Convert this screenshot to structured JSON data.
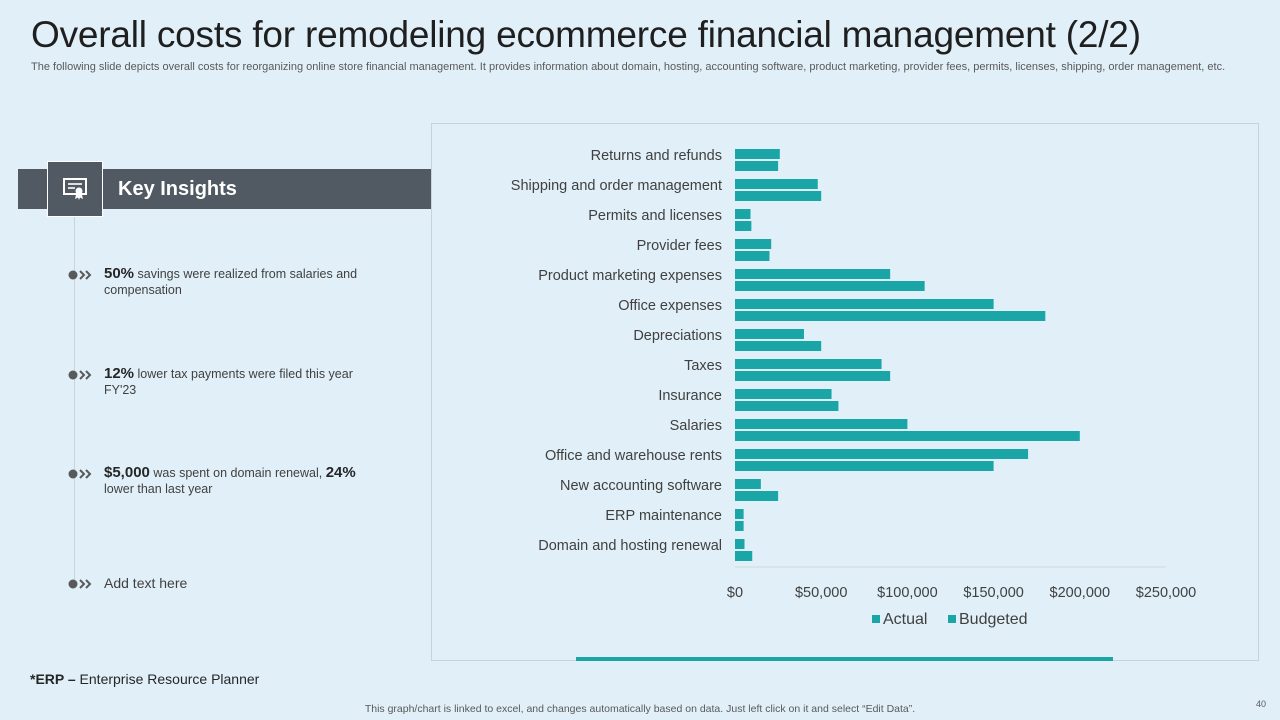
{
  "title": "Overall costs for remodeling ecommerce financial management (2/2)",
  "subtitle": "The following slide depicts overall costs for reorganizing online store financial management. It provides information about domain, hosting, accounting software, product marketing, provider fees, permits, licenses, shipping, order management, etc.",
  "key_insights": {
    "heading": "Key Insights",
    "icon": "certificate-icon",
    "items": [
      {
        "highlight": "50%",
        "text": " savings were realized from salaries and compensation"
      },
      {
        "highlight": "12%",
        "text": " lower tax payments were filed this year FY'23"
      },
      {
        "highlight": "$5,000",
        "text": " was spent on domain renewal, ",
        "highlight2": "24%",
        "text2": " lower than last year"
      },
      {
        "text": "Add text here"
      }
    ]
  },
  "footnote": {
    "bold": "*ERP –",
    "text": " Enterprise Resource Planner"
  },
  "bottom_note": "This graph/chart is linked to excel,  and changes automatically based on data. Just left click on it and select “Edit Data”.",
  "page_number": "40",
  "colors": {
    "actual": "#1aa6a6",
    "budgeted": "#1aa6a6",
    "dark_bar": "#515a63",
    "background": "#e1f0f8"
  },
  "chart_data": {
    "type": "bar",
    "orientation": "horizontal",
    "categories": [
      "Returns and refunds",
      "Shipping and order management",
      "Permits and licenses",
      "Provider fees",
      "Product marketing expenses",
      "Office expenses",
      "Depreciations",
      "Taxes",
      "Insurance",
      "Salaries",
      "Office and warehouse rents",
      "New accounting software",
      "ERP maintenance",
      "Domain and hosting renewal"
    ],
    "series": [
      {
        "name": "Actual",
        "values": [
          26000,
          48000,
          9000,
          21000,
          90000,
          150000,
          40000,
          85000,
          56000,
          100000,
          170000,
          15000,
          5000,
          5500
        ]
      },
      {
        "name": "Budgeted",
        "values": [
          25000,
          50000,
          9500,
          20000,
          110000,
          180000,
          50000,
          90000,
          60000,
          200000,
          150000,
          25000,
          5000,
          10000
        ]
      }
    ],
    "x_ticks": [
      "$0",
      "$50,000",
      "$100,000",
      "$150,000",
      "$200,000",
      "$250,000"
    ],
    "xlim": [
      0,
      250000
    ],
    "grid": false,
    "legend_position": "bottom"
  }
}
